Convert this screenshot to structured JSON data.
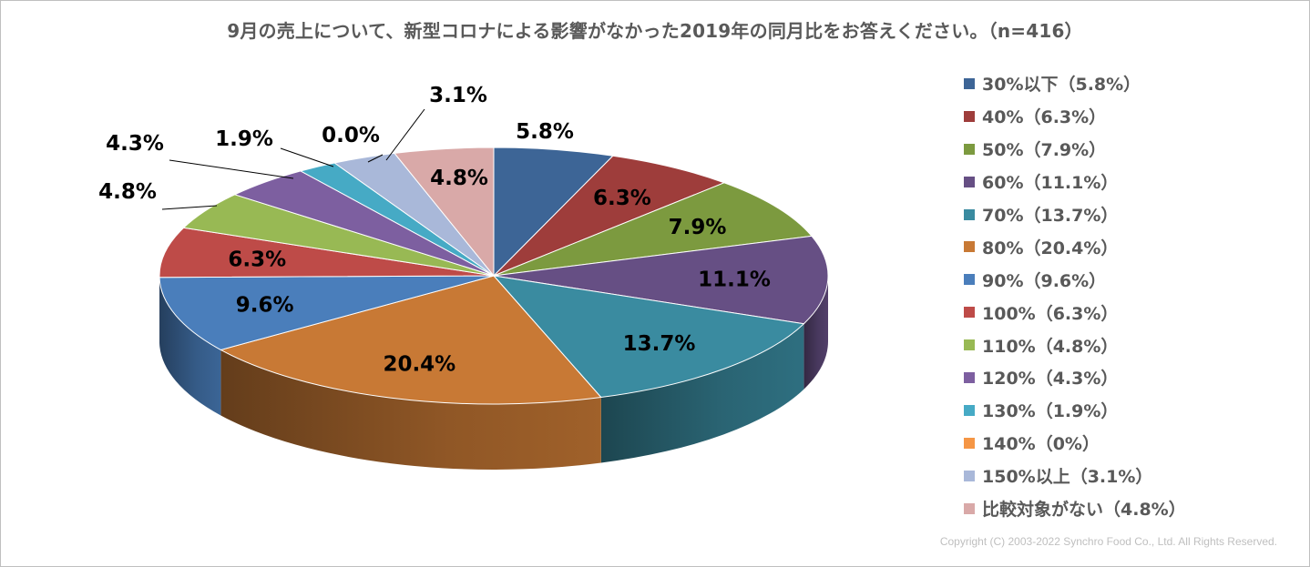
{
  "chart_data": {
    "type": "pie",
    "title": "9月の売上について、新型コロナによる影響がなかった2019年の同月比をお答えください。（n=416）",
    "slices": [
      {
        "legend": "30%以下（5.8%）",
        "label": "5.8%",
        "value": 5.8,
        "color": "#3D6596"
      },
      {
        "legend": "40%（6.3%）",
        "label": "6.3%",
        "value": 6.3,
        "color": "#9E3D3B"
      },
      {
        "legend": "50%（7.9%）",
        "label": "7.9%",
        "value": 7.9,
        "color": "#7C9A3F"
      },
      {
        "legend": "60%（11.1%）",
        "label": "11.1%",
        "value": 11.1,
        "color": "#664F84"
      },
      {
        "legend": "70%（13.7%）",
        "label": "13.7%",
        "value": 13.7,
        "color": "#3A8BA0"
      },
      {
        "legend": "80%（20.4%）",
        "label": "20.4%",
        "value": 20.4,
        "color": "#C87935"
      },
      {
        "legend": "90%（9.6%）",
        "label": "9.6%",
        "value": 9.6,
        "color": "#4A7EBB"
      },
      {
        "legend": "100%（6.3%）",
        "label": "6.3%",
        "value": 6.3,
        "color": "#BE4B48"
      },
      {
        "legend": "110%（4.8%）",
        "label": "4.8%",
        "value": 4.8,
        "color": "#98B954"
      },
      {
        "legend": "120%（4.3%）",
        "label": "4.3%",
        "value": 4.3,
        "color": "#7D5FA0"
      },
      {
        "legend": "130%（1.9%）",
        "label": "1.9%",
        "value": 1.9,
        "color": "#46AAC5"
      },
      {
        "legend": "140%（0%）",
        "label": "0.0%",
        "value": 0.0,
        "color": "#F59645"
      },
      {
        "legend": "150%以上（3.1%）",
        "label": "3.1%",
        "value": 3.1,
        "color": "#A9B8D9"
      },
      {
        "legend": "比較対象がない（4.8%）",
        "label": "4.8%",
        "value": 4.8,
        "color": "#D9A9A8"
      }
    ],
    "legend_position": "right"
  },
  "copyright": "Copyright (C) 2003-2022  Synchro Food Co., Ltd.  All Rights Reserved."
}
